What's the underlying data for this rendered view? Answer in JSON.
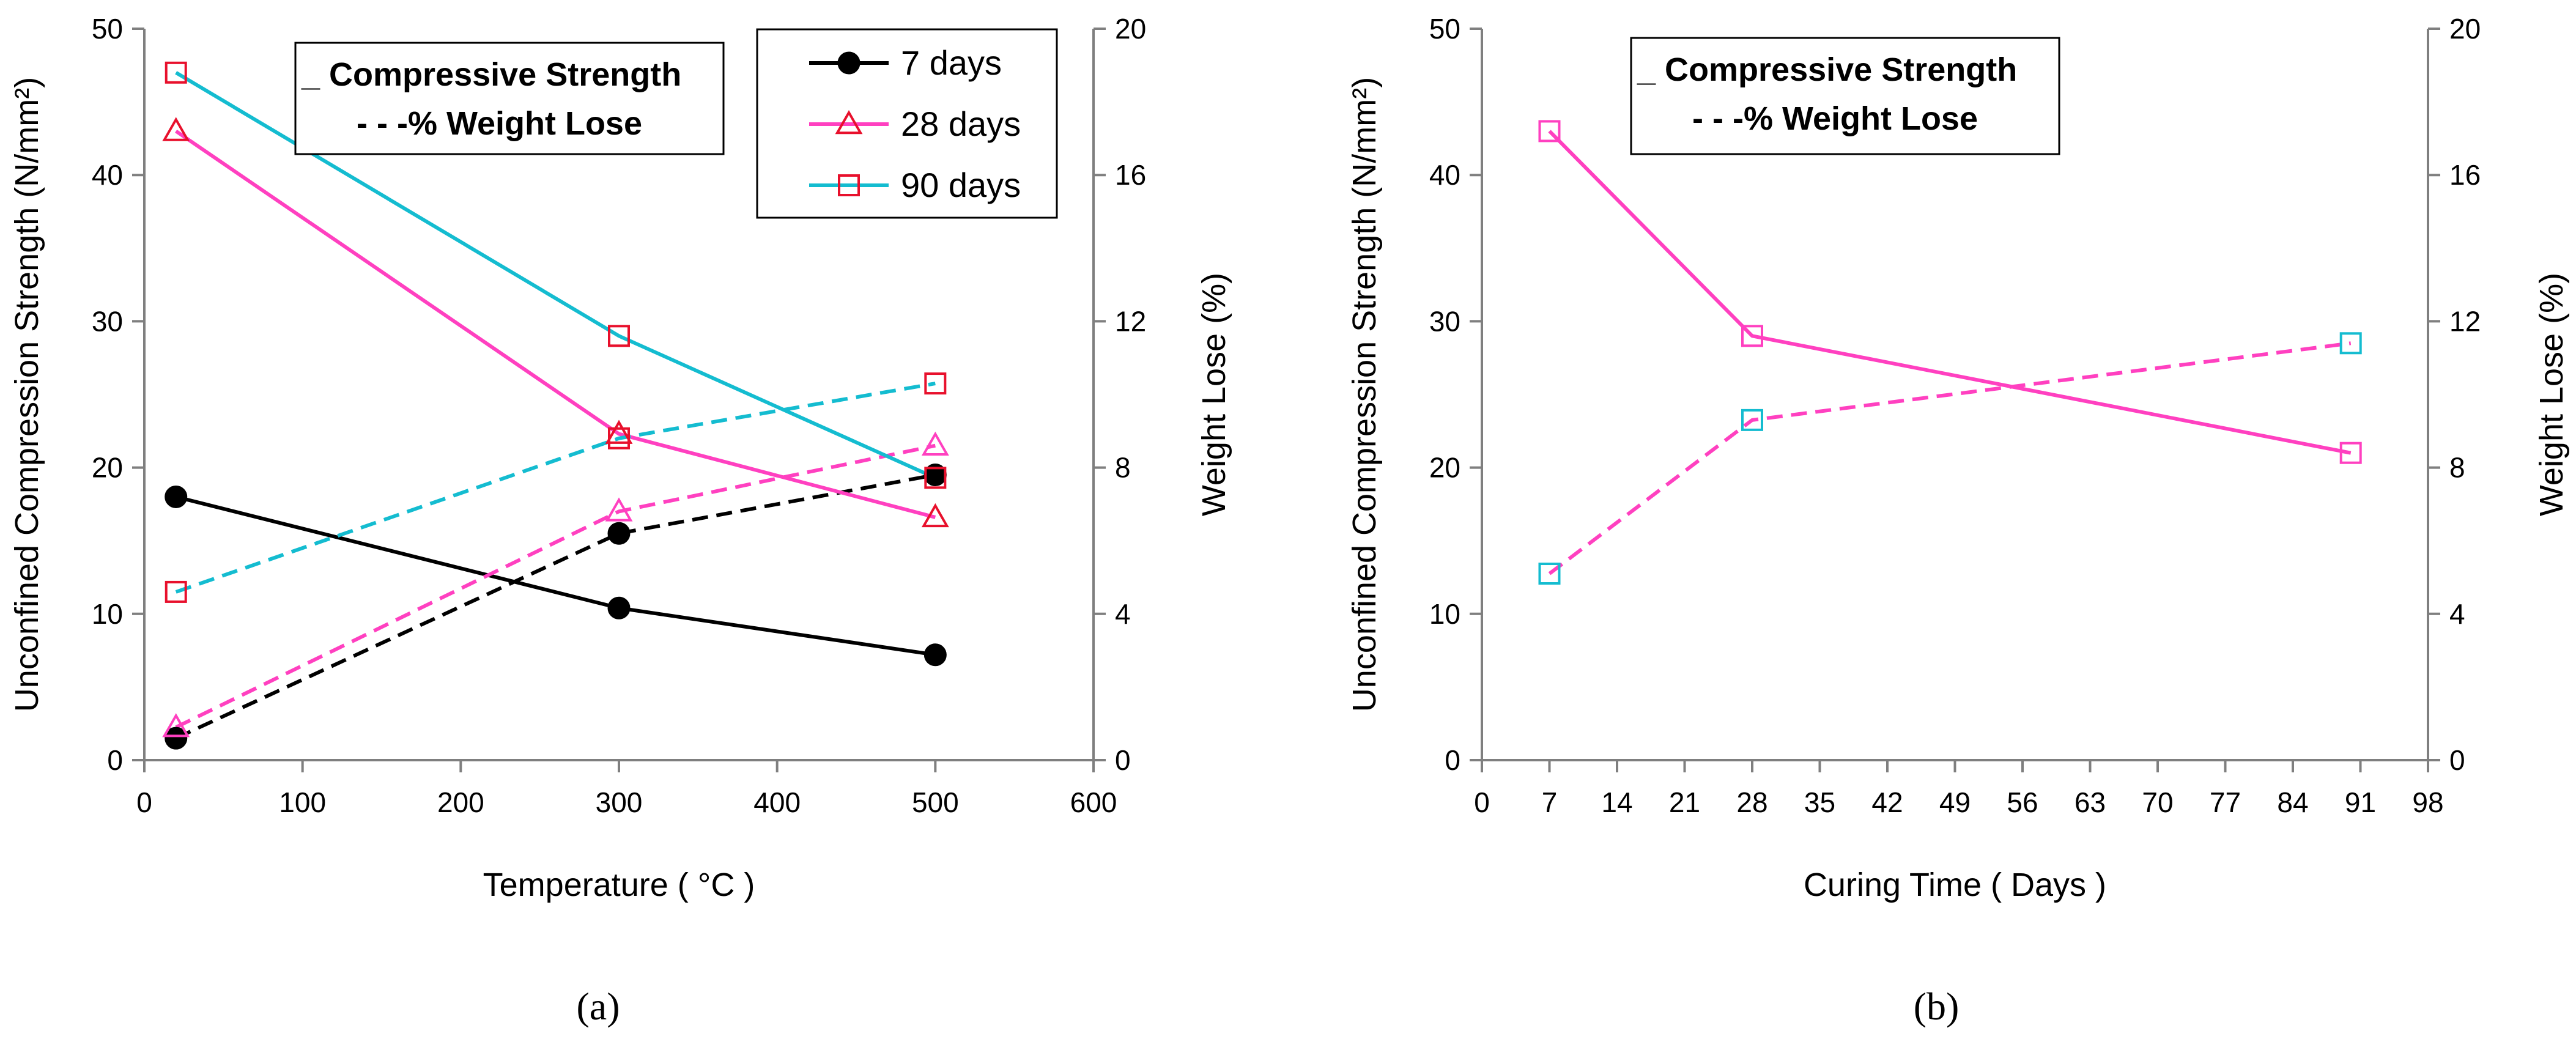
{
  "figure": {
    "panel_a_caption": "(a)",
    "panel_b_caption": "(b)"
  },
  "chart_data": [
    {
      "type": "line",
      "panel": "a",
      "xlabel": "Temperature ( °C )",
      "ylabel_left": "Unconfined Compression Strength (N/mm²)",
      "ylabel_right": "Weight Lose (%)",
      "xlim": [
        0,
        600
      ],
      "xticks": [
        0,
        100,
        200,
        300,
        400,
        500,
        600
      ],
      "ylim_left": [
        0,
        50
      ],
      "yticks_left": [
        0,
        10,
        20,
        30,
        40,
        50
      ],
      "ylim_right": [
        0,
        20
      ],
      "yticks_right": [
        0,
        4,
        8,
        12,
        16,
        20
      ],
      "grid": false,
      "style_legend": [
        "_ Compressive Strength",
        "- - -% Weight Lose"
      ],
      "series": [
        {
          "name": "7 days",
          "axis": "left",
          "style": "solid",
          "line_color": "#000000",
          "marker": "circle-filled",
          "marker_color": "#000000",
          "x": [
            20,
            300,
            500
          ],
          "y": [
            18.0,
            10.4,
            7.2
          ]
        },
        {
          "name": "7 days",
          "axis": "right",
          "style": "dashed",
          "line_color": "#000000",
          "marker": "circle-filled",
          "marker_color": "#000000",
          "x": [
            20,
            300,
            500
          ],
          "y": [
            0.6,
            6.2,
            7.8
          ]
        },
        {
          "name": "28 days",
          "axis": "left",
          "style": "solid",
          "line_color": "#ff40c0",
          "marker": "triangle",
          "marker_color": "#e8102c",
          "x": [
            20,
            300,
            500
          ],
          "y": [
            43.0,
            22.3,
            16.6
          ]
        },
        {
          "name": "28 days",
          "axis": "right",
          "style": "dashed",
          "line_color": "#ff40c0",
          "marker": "triangle",
          "marker_color": "#ff40c0",
          "x": [
            20,
            300,
            500
          ],
          "y": [
            0.9,
            6.8,
            8.6
          ]
        },
        {
          "name": "90 days",
          "axis": "left",
          "style": "solid",
          "line_color": "#14bcd0",
          "marker": "square",
          "marker_color": "#e8102c",
          "x": [
            20,
            300,
            500
          ],
          "y": [
            47.0,
            29.0,
            19.3
          ]
        },
        {
          "name": "90 days",
          "axis": "right",
          "style": "dashed",
          "line_color": "#14bcd0",
          "marker": "square",
          "marker_color": "#e8102c",
          "x": [
            20,
            300,
            500
          ],
          "y": [
            4.6,
            8.8,
            10.3
          ]
        }
      ],
      "legend": [
        {
          "label": "7 days",
          "line_color": "#000000",
          "marker": "circle-filled",
          "marker_color": "#000000"
        },
        {
          "label": "28 days",
          "line_color": "#ff40c0",
          "marker": "triangle",
          "marker_color": "#e8102c"
        },
        {
          "label": "90 days",
          "line_color": "#14bcd0",
          "marker": "square",
          "marker_color": "#e8102c"
        }
      ]
    },
    {
      "type": "line",
      "panel": "b",
      "xlabel": "Curing Time ( Days )",
      "ylabel_left": "Unconfined Compression Strength (N/mm²)",
      "ylabel_right": "Weight Lose (%)",
      "xlim": [
        0,
        98
      ],
      "xticks": [
        0,
        7,
        14,
        21,
        28,
        35,
        42,
        49,
        56,
        63,
        70,
        77,
        84,
        91,
        98
      ],
      "ylim_left": [
        0,
        50
      ],
      "yticks_left": [
        0,
        10,
        20,
        30,
        40,
        50
      ],
      "ylim_right": [
        0,
        20
      ],
      "yticks_right": [
        0,
        4,
        8,
        12,
        16,
        20
      ],
      "grid": false,
      "style_legend": [
        "_ Compressive Strength",
        "- - -% Weight Lose"
      ],
      "series": [
        {
          "name": "Compressive Strength",
          "axis": "left",
          "style": "solid",
          "line_color": "#ff40c0",
          "marker": "square",
          "marker_colors": [
            "#ff40c0",
            "#ff40c0",
            "#ff40c0"
          ],
          "x": [
            7,
            28,
            90
          ],
          "y": [
            43.0,
            29.0,
            21.0
          ]
        },
        {
          "name": "% Weight Lose",
          "axis": "right",
          "style": "dashed",
          "line_color": "#ff40c0",
          "marker": "square",
          "marker_colors": [
            "#14bcd0",
            "#14bcd0",
            "#14bcd0"
          ],
          "x": [
            7,
            28,
            90
          ],
          "y": [
            5.1,
            9.3,
            11.4
          ]
        }
      ]
    }
  ]
}
